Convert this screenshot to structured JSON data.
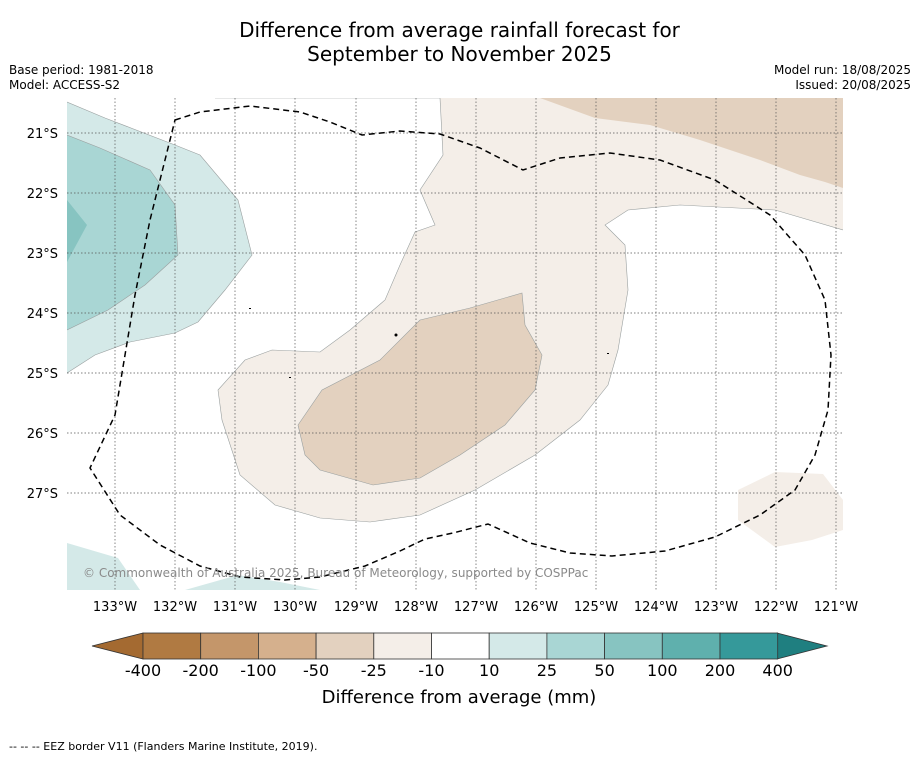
{
  "title_line1": "Difference from average rainfall forecast for",
  "title_line2": "September to November 2025",
  "meta_left": {
    "base_period": "Base period: 1981-2018",
    "model": "Model: ACCESS-S2"
  },
  "meta_right": {
    "model_run": "Model run: 18/08/2025",
    "issued": "Issued: 20/08/2025"
  },
  "copyright": "© Commonwealth of Australia 2025, Bureau of Meteorology, supported by COSPPac",
  "lat_labels": [
    "21°S",
    "22°S",
    "23°S",
    "24°S",
    "25°S",
    "26°S",
    "27°S"
  ],
  "lon_labels": [
    "133°W",
    "132°W",
    "131°W",
    "130°W",
    "129°W",
    "128°W",
    "127°W",
    "126°W",
    "125°W",
    "124°W",
    "123°W",
    "122°W",
    "121°W"
  ],
  "colorbar": {
    "ticks": [
      "-400",
      "-200",
      "-100",
      "-50",
      "-25",
      "-10",
      "10",
      "25",
      "50",
      "100",
      "200",
      "400"
    ],
    "colors": [
      "#a46a31",
      "#b07a42",
      "#c4966a",
      "#d5b08d",
      "#e3d1bf",
      "#f4eee8",
      "#ffffff",
      "#d4e9e8",
      "#a9d6d4",
      "#87c4c1",
      "#5fb0ad",
      "#35999a",
      "#1f7f80"
    ],
    "title": "Difference from average (mm)"
  },
  "map_colors": {
    "dry_light": "#f4eee8",
    "dry_mid": "#e3d1bf",
    "wet_light": "#d4e9e8",
    "wet_mid": "#a9d6d4",
    "wet_dark": "#87c4c1"
  },
  "footer": "--  --  -- EEZ border V11 (Flanders Marine Institute, 2019)."
}
